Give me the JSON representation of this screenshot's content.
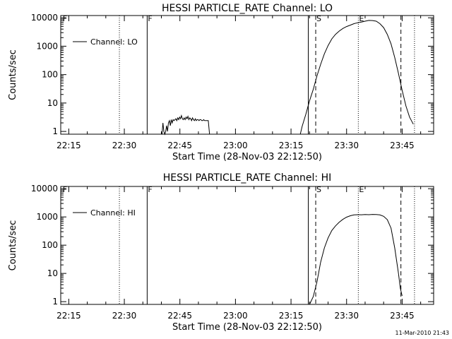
{
  "chart_data": [
    {
      "type": "line",
      "title": "HESSI PARTICLE_RATE Channel: LO",
      "xlabel": "Start Time (28-Nov-03 22:12:50)",
      "ylabel": "Counts/sec",
      "y_scale": "log",
      "ylim": [
        0.8,
        12000
      ],
      "xlim": [
        "22:12:50",
        "23:53:30"
      ],
      "x_ticks": [
        "22:15",
        "22:30",
        "22:45",
        "23:00",
        "23:15",
        "23:30",
        "23:45"
      ],
      "y_ticks": [
        "1",
        "10",
        "100",
        "1000",
        "10000"
      ],
      "legend": {
        "label": "Channel: LO",
        "position": "top-left"
      },
      "grid": false,
      "markers": [
        {
          "label": "F",
          "time": "22:13:10",
          "style": "none"
        },
        {
          "label": "",
          "time": "22:28:40",
          "style": "dotted"
        },
        {
          "label": "F",
          "time": "22:36:10",
          "style": "solid"
        },
        {
          "label": "",
          "time": "23:19:40",
          "style": "solid"
        },
        {
          "label": "S",
          "time": "23:21:40",
          "style": "dashed"
        },
        {
          "label": "E",
          "time": "23:33:10",
          "style": "dotted"
        },
        {
          "label": "",
          "time": "23:44:40",
          "style": "dashed"
        },
        {
          "label": "",
          "time": "23:48:20",
          "style": "dotted"
        }
      ],
      "segments": [
        {
          "x": [
            "22:40:10",
            "22:40:25",
            "22:40:40",
            "22:40:55",
            "22:41:10",
            "22:41:25",
            "22:41:40",
            "22:41:55",
            "22:42:10",
            "22:42:25",
            "22:42:40",
            "22:42:55",
            "22:43:10",
            "22:43:25",
            "22:43:40",
            "22:43:55",
            "22:44:10",
            "22:44:25",
            "22:44:40",
            "22:44:55",
            "22:45:10",
            "22:45:25",
            "22:45:40",
            "22:45:55",
            "22:46:10",
            "22:46:25",
            "22:46:40",
            "22:46:55",
            "22:47:10",
            "22:47:25",
            "22:47:40",
            "22:47:55",
            "22:48:10",
            "22:48:25",
            "22:48:40",
            "22:48:55",
            "22:49:10",
            "22:49:25",
            "22:49:40",
            "22:49:55",
            "22:50:10",
            "22:50:25",
            "22:50:40",
            "22:50:55",
            "22:51:10",
            "22:51:25",
            "22:51:40",
            "22:51:55",
            "22:52:10",
            "22:52:25",
            "22:52:40",
            "22:53:00"
          ],
          "y": [
            0.8,
            2.0,
            1.0,
            0.8,
            1.0,
            1.6,
            1.0,
            2.0,
            2.4,
            1.6,
            2.6,
            2.0,
            2.6,
            2.4,
            2.6,
            2.8,
            2.4,
            3.0,
            2.6,
            3.2,
            2.8,
            3.6,
            2.8,
            2.6,
            3.0,
            2.6,
            3.2,
            2.8,
            3.4,
            2.6,
            3.0,
            2.8,
            2.4,
            3.0,
            2.6,
            2.4,
            2.8,
            2.4,
            2.6,
            2.6,
            2.4,
            2.6,
            2.6,
            2.4,
            2.4,
            2.6,
            2.4,
            2.4,
            2.4,
            2.4,
            2.4,
            0.8
          ]
        },
        {
          "x": [
            "23:17:30",
            "23:18:00",
            "23:19:00",
            "23:20:00",
            "23:21:00",
            "23:22:00",
            "23:23:00",
            "23:24:00",
            "23:25:00",
            "23:26:00",
            "23:27:00",
            "23:28:00",
            "23:29:00",
            "23:30:00",
            "23:31:00",
            "23:32:00",
            "23:33:00",
            "23:34:00",
            "23:35:00",
            "23:36:00",
            "23:37:00",
            "23:38:00",
            "23:39:00",
            "23:40:00",
            "23:41:00",
            "23:42:00",
            "23:43:00",
            "23:44:00",
            "23:45:00",
            "23:46:00",
            "23:47:00",
            "23:48:00"
          ],
          "y": [
            0.8,
            1.5,
            4,
            12,
            30,
            90,
            230,
            540,
            1050,
            1800,
            2600,
            3400,
            4200,
            4900,
            5500,
            6200,
            6700,
            7100,
            7600,
            8100,
            8000,
            7600,
            6200,
            4500,
            2600,
            1200,
            400,
            110,
            28,
            8,
            3.2,
            1.8
          ]
        }
      ]
    },
    {
      "type": "line",
      "title": "HESSI PARTICLE_RATE Channel: HI",
      "xlabel": "Start Time (28-Nov-03 22:12:50)",
      "ylabel": "Counts/sec",
      "y_scale": "log",
      "ylim": [
        0.8,
        12000
      ],
      "xlim": [
        "22:12:50",
        "23:53:30"
      ],
      "x_ticks": [
        "22:15",
        "22:30",
        "22:45",
        "23:00",
        "23:15",
        "23:30",
        "23:45"
      ],
      "y_ticks": [
        "1",
        "10",
        "100",
        "1000",
        "10000"
      ],
      "legend": {
        "label": "Channel: HI",
        "position": "top-left"
      },
      "grid": false,
      "markers": [
        {
          "label": "F",
          "time": "22:13:10",
          "style": "none"
        },
        {
          "label": "",
          "time": "22:28:40",
          "style": "dotted"
        },
        {
          "label": "F",
          "time": "22:36:10",
          "style": "solid"
        },
        {
          "label": "",
          "time": "23:19:40",
          "style": "solid"
        },
        {
          "label": "S",
          "time": "23:21:40",
          "style": "dashed"
        },
        {
          "label": "E",
          "time": "23:33:10",
          "style": "dotted"
        },
        {
          "label": "",
          "time": "23:44:40",
          "style": "dashed"
        },
        {
          "label": "",
          "time": "23:48:20",
          "style": "dotted"
        }
      ],
      "segments": [
        {
          "x": [
            "23:20:00",
            "23:21:00",
            "23:22:00",
            "23:23:00",
            "23:24:00",
            "23:25:00",
            "23:26:00",
            "23:27:00",
            "23:28:00",
            "23:29:00",
            "23:30:00",
            "23:31:00",
            "23:32:00",
            "23:33:00",
            "23:34:00",
            "23:35:00",
            "23:36:00",
            "23:37:00",
            "23:38:00",
            "23:39:00",
            "23:40:00",
            "23:41:00",
            "23:42:00",
            "23:43:00",
            "23:44:00",
            "23:44:30",
            "23:45:00"
          ],
          "y": [
            0.8,
            1.5,
            5,
            25,
            80,
            180,
            330,
            480,
            650,
            820,
            980,
            1100,
            1180,
            1200,
            1190,
            1220,
            1200,
            1230,
            1210,
            1180,
            1050,
            800,
            400,
            80,
            10,
            3,
            1.6
          ]
        }
      ]
    }
  ],
  "footer": {
    "timestamp": "11-Mar-2010 21:43"
  }
}
